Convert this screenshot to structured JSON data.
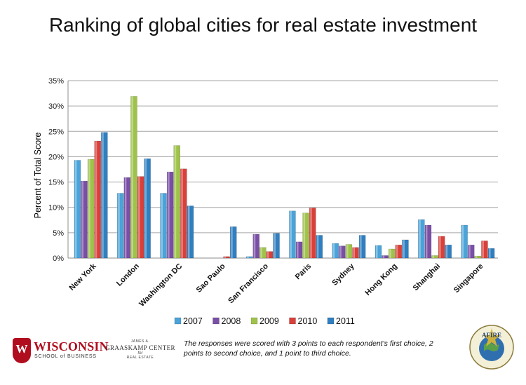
{
  "title": "Ranking of global cities for real estate investment",
  "footnote": "The responses were scored with 3 points to each respondent's first choice, 2 points to second choice, and 1 point to third choice.",
  "logos": {
    "wisconsin_name": "WISCONSIN",
    "wisconsin_sub": "SCHOOL of BUSINESS",
    "wisconsin_crest": "W",
    "graaskamp_line1": "JAMES A.",
    "graaskamp_line2": "GRAASKAMP CENTER",
    "graaskamp_line3": "for",
    "graaskamp_line4": "REAL ESTATE",
    "afire_mark": "AFIRE"
  },
  "chart_data": {
    "type": "bar",
    "title": "Ranking of global cities for real estate investment",
    "ylabel": "Percent of Total Score",
    "xlabel": "",
    "ylim": [
      0,
      35
    ],
    "yticks": [
      "0%",
      "5%",
      "10%",
      "15%",
      "20%",
      "25%",
      "30%",
      "35%"
    ],
    "grid": true,
    "legend_position": "bottom",
    "categories": [
      "New York",
      "London",
      "Washington DC",
      "Sao Paulo",
      "San Francisco",
      "Paris",
      "Sydney",
      "Hong Kong",
      "Shanghai",
      "Singapore"
    ],
    "series": [
      {
        "name": "2007",
        "color": "#4aa3d9",
        "values": [
          19.3,
          12.8,
          12.8,
          0,
          0.3,
          9.3,
          2.9,
          2.5,
          7.6,
          6.5
        ]
      },
      {
        "name": "2008",
        "color": "#7a4fa6",
        "values": [
          15.2,
          15.9,
          17.0,
          0,
          4.7,
          3.2,
          2.4,
          0.5,
          6.5,
          2.6
        ]
      },
      {
        "name": "2009",
        "color": "#9fc24a",
        "values": [
          19.5,
          31.9,
          22.2,
          0,
          2.1,
          8.9,
          2.7,
          1.8,
          0.5,
          0.4
        ]
      },
      {
        "name": "2010",
        "color": "#d9403a",
        "values": [
          23.1,
          16.1,
          17.6,
          0.3,
          1.3,
          9.9,
          2.1,
          2.6,
          4.3,
          3.4
        ]
      },
      {
        "name": "2011",
        "color": "#2f7fc1",
        "values": [
          24.8,
          19.6,
          10.3,
          6.2,
          4.9,
          4.5,
          4.5,
          3.6,
          2.6,
          1.9
        ]
      }
    ]
  }
}
